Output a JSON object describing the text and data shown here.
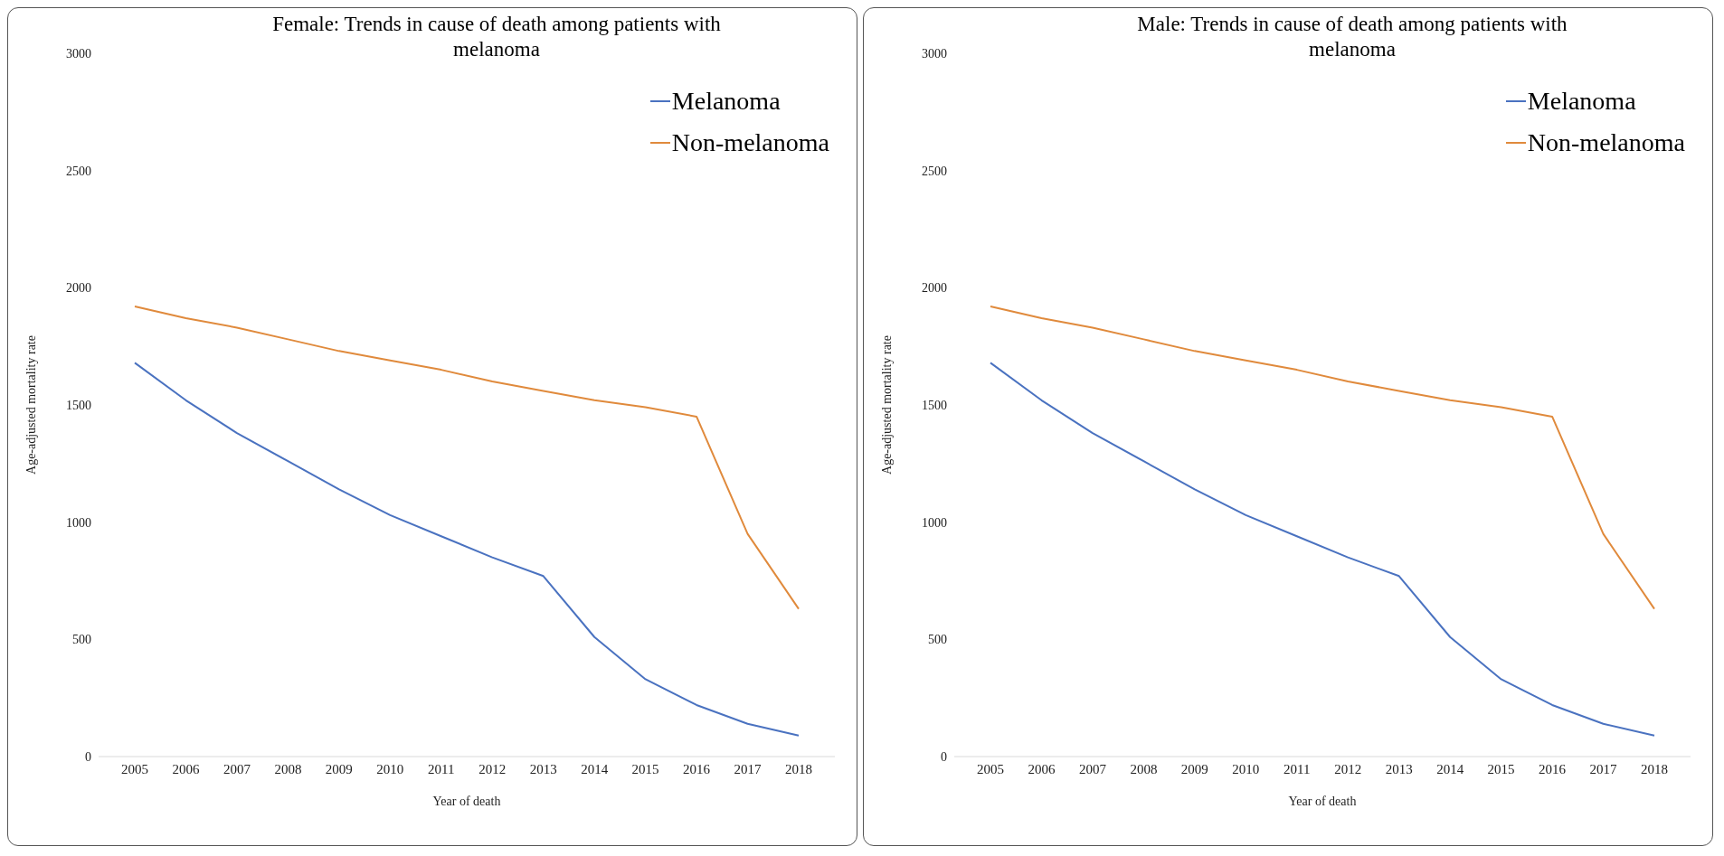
{
  "chart_data": [
    {
      "type": "line",
      "title": "Female: Trends in cause of death among patients with melanoma",
      "xlabel": "Year of death",
      "ylabel": "Age-adjusted mortality  rate",
      "categories": [
        "2005",
        "2006",
        "2007",
        "2008",
        "2009",
        "2010",
        "2011",
        "2012",
        "2013",
        "2014",
        "2015",
        "2016",
        "2017",
        "2018"
      ],
      "series": [
        {
          "name": "Melanoma",
          "color": "#4a72c0",
          "values": [
            1680,
            1520,
            1380,
            1260,
            1140,
            1030,
            940,
            850,
            770,
            510,
            330,
            220,
            140,
            90
          ]
        },
        {
          "name": "Non-melanoma",
          "color": "#e08a3c",
          "values": [
            1920,
            1870,
            1830,
            1780,
            1730,
            1690,
            1650,
            1600,
            1560,
            1520,
            1490,
            1450,
            950,
            630
          ]
        }
      ],
      "ylim": [
        0,
        3000
      ],
      "yticks": [
        0,
        500,
        1000,
        1500,
        2000,
        2500,
        3000
      ],
      "grid": false,
      "legend": "top right",
      "marker": "none",
      "line_style": "solid"
    },
    {
      "type": "line",
      "title": "Male: Trends in cause of death among patients with melanoma",
      "xlabel": "Year of death",
      "ylabel": "Age-adjusted mortality  rate",
      "categories": [
        "2005",
        "2006",
        "2007",
        "2008",
        "2009",
        "2010",
        "2011",
        "2012",
        "2013",
        "2014",
        "2015",
        "2016",
        "2017",
        "2018"
      ],
      "series": [
        {
          "name": "Melanoma",
          "color": "#4a72c0",
          "values": [
            1680,
            1520,
            1380,
            1260,
            1140,
            1030,
            940,
            850,
            770,
            510,
            330,
            220,
            140,
            90
          ]
        },
        {
          "name": "Non-melanoma",
          "color": "#e08a3c",
          "values": [
            1920,
            1870,
            1830,
            1780,
            1730,
            1690,
            1650,
            1600,
            1560,
            1520,
            1490,
            1450,
            950,
            630
          ]
        }
      ],
      "ylim": [
        0,
        3000
      ],
      "yticks": [
        0,
        500,
        1000,
        1500,
        2000,
        2500,
        3000
      ],
      "grid": false,
      "legend": "top right",
      "marker": "none",
      "line_style": "solid"
    }
  ]
}
